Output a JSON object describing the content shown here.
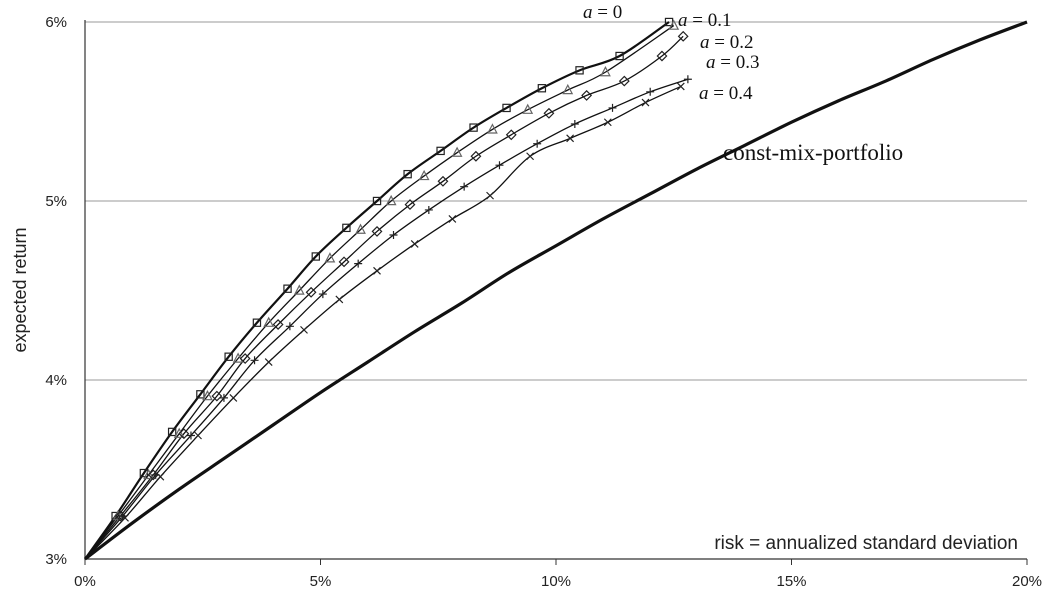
{
  "chart_data": {
    "type": "line",
    "xlabel": "risk = annualized  standard deviation",
    "ylabel": "expected  return",
    "xlim": [
      0,
      20
    ],
    "ylim": [
      3,
      6
    ],
    "x_ticks": [
      0,
      5,
      10,
      15,
      20
    ],
    "x_tick_labels": [
      "0%",
      "5%",
      "10%",
      "15%",
      "20%"
    ],
    "y_ticks": [
      3,
      4,
      5,
      6
    ],
    "y_tick_labels": [
      "3%",
      "4%",
      "5%",
      "6%"
    ],
    "grid": "horizontal",
    "annotation": "const-mix-portfolio",
    "series": [
      {
        "name": "a = 0",
        "label_var": "a",
        "label_rest": " = 0",
        "marker": "square",
        "x": [
          0,
          0.65,
          1.25,
          1.85,
          2.45,
          3.05,
          3.65,
          4.3,
          4.9,
          5.55,
          6.2,
          6.85,
          7.55,
          8.25,
          8.95,
          9.7,
          10.5,
          11.35,
          12.4
        ],
        "y": [
          3.0,
          3.24,
          3.48,
          3.71,
          3.92,
          4.13,
          4.32,
          4.51,
          4.69,
          4.85,
          5.0,
          5.15,
          5.28,
          5.41,
          5.52,
          5.63,
          5.73,
          5.81,
          6.0
        ]
      },
      {
        "name": "a = 0.1",
        "label_var": "a",
        "label_rest": " = 0.1",
        "marker": "triangle",
        "x": [
          0,
          0.7,
          1.35,
          2.0,
          2.6,
          3.25,
          3.9,
          4.55,
          5.2,
          5.85,
          6.5,
          7.2,
          7.9,
          8.65,
          9.4,
          10.25,
          11.05,
          12.5
        ],
        "y": [
          3.0,
          3.24,
          3.47,
          3.7,
          3.91,
          4.12,
          4.32,
          4.5,
          4.68,
          4.84,
          5.0,
          5.14,
          5.27,
          5.4,
          5.51,
          5.62,
          5.72,
          5.98
        ]
      },
      {
        "name": "a = 0.2",
        "label_var": "a",
        "label_rest": " = 0.2",
        "marker": "diamond",
        "x": [
          0,
          0.75,
          1.45,
          2.1,
          2.8,
          3.4,
          4.1,
          4.8,
          5.5,
          6.2,
          6.9,
          7.6,
          8.3,
          9.05,
          9.85,
          10.65,
          11.45,
          12.25,
          12.7
        ],
        "y": [
          3.0,
          3.24,
          3.47,
          3.7,
          3.91,
          4.12,
          4.31,
          4.49,
          4.66,
          4.83,
          4.98,
          5.11,
          5.25,
          5.37,
          5.49,
          5.59,
          5.67,
          5.81,
          5.92
        ]
      },
      {
        "name": "a = 0.3",
        "label_var": "a",
        "label_rest": " = 0.3",
        "marker": "plus",
        "x": [
          0,
          0.8,
          1.5,
          2.25,
          2.95,
          3.6,
          4.35,
          5.05,
          5.8,
          6.55,
          7.3,
          8.05,
          8.8,
          9.6,
          10.4,
          11.2,
          12.0,
          12.8
        ],
        "y": [
          3.0,
          3.24,
          3.47,
          3.69,
          3.9,
          4.11,
          4.3,
          4.48,
          4.65,
          4.81,
          4.95,
          5.08,
          5.2,
          5.32,
          5.43,
          5.52,
          5.61,
          5.68
        ]
      },
      {
        "name": "a = 0.4",
        "label_var": "a",
        "label_rest": " = 0.4",
        "marker": "x",
        "x": [
          0,
          0.85,
          1.6,
          2.4,
          3.15,
          3.9,
          4.65,
          5.4,
          6.2,
          7.0,
          7.8,
          8.6,
          9.45,
          10.3,
          11.1,
          11.9,
          12.65
        ],
        "y": [
          3.0,
          3.23,
          3.46,
          3.69,
          3.9,
          4.1,
          4.28,
          4.45,
          4.61,
          4.76,
          4.9,
          5.03,
          5.25,
          5.35,
          5.44,
          5.55,
          5.64
        ]
      },
      {
        "name": "const-mix-portfolio",
        "marker": "none",
        "bold": true,
        "x": [
          0,
          1,
          2,
          3,
          4,
          5,
          6,
          7,
          8,
          9,
          10,
          11,
          12,
          13,
          14,
          15,
          16,
          17,
          18,
          19,
          20
        ],
        "y": [
          3.0,
          3.2,
          3.39,
          3.57,
          3.75,
          3.93,
          4.1,
          4.27,
          4.43,
          4.6,
          4.75,
          4.9,
          5.04,
          5.18,
          5.31,
          5.44,
          5.56,
          5.67,
          5.79,
          5.9,
          6.0
        ]
      }
    ]
  }
}
